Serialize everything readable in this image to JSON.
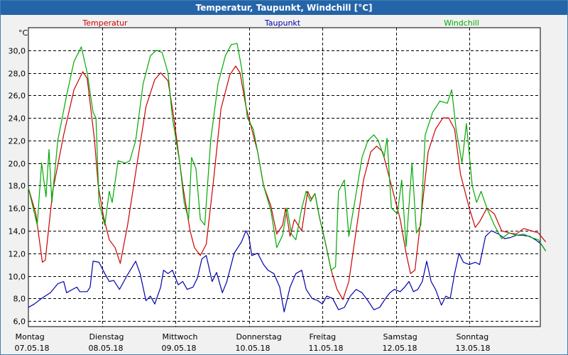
{
  "window": {
    "title": "Temperatur, Taupunkt, Windchill [°C]"
  },
  "chart_data": {
    "type": "line",
    "title": "Temperatur, Taupunkt, Windchill [°C]",
    "ylabel": "°C",
    "xlabel": "",
    "ylim": [
      5.5,
      32.0
    ],
    "xlim": [
      0,
      7.12
    ],
    "grid": true,
    "legend_position": "top",
    "y_ticks": [
      "6,0",
      "8,0",
      "10,0",
      "12,0",
      "14,0",
      "16,0",
      "18,0",
      "20,0",
      "22,0",
      "24,0",
      "26,0",
      "28,0",
      "30,0"
    ],
    "y_tick_values": [
      6,
      8,
      10,
      12,
      14,
      16,
      18,
      20,
      22,
      24,
      26,
      28,
      30
    ],
    "x_ticks": [
      {
        "day": "Montag",
        "date": "07.05.18",
        "x": 0
      },
      {
        "day": "Dienstag",
        "date": "08.05.18",
        "x": 1
      },
      {
        "day": "Mittwoch",
        "date": "09.05.18",
        "x": 2
      },
      {
        "day": "Donnerstag",
        "date": "10.05.18",
        "x": 3
      },
      {
        "day": "Freitag",
        "date": "11.05.18",
        "x": 4
      },
      {
        "day": "Samstag",
        "date": "12.05.18",
        "x": 5
      },
      {
        "day": "Sonntag",
        "date": "13.05.18",
        "x": 6
      }
    ],
    "series": [
      {
        "name": "Temperatur",
        "color": "#cc0000",
        "points": [
          [
            0.0,
            17.8
          ],
          [
            0.1,
            15.5
          ],
          [
            0.19,
            11.2
          ],
          [
            0.23,
            11.4
          ],
          [
            0.33,
            17.5
          ],
          [
            0.48,
            22.5
          ],
          [
            0.62,
            26.5
          ],
          [
            0.74,
            28.1
          ],
          [
            0.8,
            27.5
          ],
          [
            0.9,
            22.0
          ],
          [
            0.95,
            18.0
          ],
          [
            1.02,
            15.3
          ],
          [
            1.1,
            13.2
          ],
          [
            1.18,
            12.5
          ],
          [
            1.25,
            11.1
          ],
          [
            1.35,
            14.5
          ],
          [
            1.48,
            20.0
          ],
          [
            1.6,
            25.0
          ],
          [
            1.72,
            27.4
          ],
          [
            1.8,
            28.0
          ],
          [
            1.9,
            27.3
          ],
          [
            1.98,
            24.0
          ],
          [
            2.1,
            18.0
          ],
          [
            2.2,
            14.0
          ],
          [
            2.26,
            12.5
          ],
          [
            2.34,
            11.8
          ],
          [
            2.42,
            12.8
          ],
          [
            2.52,
            18.5
          ],
          [
            2.62,
            24.8
          ],
          [
            2.74,
            27.8
          ],
          [
            2.82,
            28.6
          ],
          [
            2.88,
            28.0
          ],
          [
            2.96,
            25.0
          ],
          [
            3.04,
            23.0
          ],
          [
            3.12,
            21.0
          ],
          [
            3.2,
            18.0
          ],
          [
            3.3,
            16.2
          ],
          [
            3.38,
            13.7
          ],
          [
            3.46,
            14.5
          ],
          [
            3.5,
            16.0
          ],
          [
            3.56,
            13.5
          ],
          [
            3.62,
            15.0
          ],
          [
            3.72,
            14.0
          ],
          [
            3.8,
            17.5
          ],
          [
            3.85,
            16.8
          ],
          [
            3.9,
            17.3
          ],
          [
            3.96,
            15.2
          ],
          [
            4.04,
            13.0
          ],
          [
            4.12,
            10.5
          ],
          [
            4.2,
            8.8
          ],
          [
            4.28,
            7.9
          ],
          [
            4.36,
            9.5
          ],
          [
            4.46,
            14.0
          ],
          [
            4.56,
            18.5
          ],
          [
            4.66,
            21.0
          ],
          [
            4.74,
            21.5
          ],
          [
            4.82,
            21.0
          ],
          [
            4.88,
            19.5
          ],
          [
            4.96,
            17.5
          ],
          [
            5.06,
            15.0
          ],
          [
            5.14,
            12.0
          ],
          [
            5.2,
            10.2
          ],
          [
            5.26,
            10.5
          ],
          [
            5.34,
            15.0
          ],
          [
            5.44,
            21.0
          ],
          [
            5.54,
            23.0
          ],
          [
            5.64,
            24.0
          ],
          [
            5.72,
            24.0
          ],
          [
            5.8,
            23.0
          ],
          [
            5.88,
            19.0
          ],
          [
            6.0,
            16.0
          ],
          [
            6.08,
            14.3
          ],
          [
            6.14,
            14.8
          ],
          [
            6.24,
            16.0
          ],
          [
            6.34,
            15.5
          ],
          [
            6.44,
            14.0
          ],
          [
            6.54,
            13.8
          ],
          [
            6.64,
            13.7
          ],
          [
            6.74,
            14.2
          ],
          [
            6.84,
            14.0
          ],
          [
            6.94,
            13.8
          ],
          [
            7.04,
            13.0
          ]
        ]
      },
      {
        "name": "Taupunkt",
        "color": "#0000aa",
        "points": [
          [
            0.0,
            7.2
          ],
          [
            0.08,
            7.5
          ],
          [
            0.18,
            8.0
          ],
          [
            0.3,
            8.5
          ],
          [
            0.4,
            9.3
          ],
          [
            0.48,
            9.5
          ],
          [
            0.52,
            8.5
          ],
          [
            0.6,
            8.8
          ],
          [
            0.66,
            9.0
          ],
          [
            0.7,
            8.6
          ],
          [
            0.8,
            8.6
          ],
          [
            0.84,
            9.0
          ],
          [
            0.88,
            11.3
          ],
          [
            0.96,
            11.2
          ],
          [
            1.04,
            10.2
          ],
          [
            1.1,
            9.5
          ],
          [
            1.16,
            9.6
          ],
          [
            1.24,
            8.8
          ],
          [
            1.34,
            10.0
          ],
          [
            1.46,
            11.3
          ],
          [
            1.52,
            10.2
          ],
          [
            1.6,
            7.8
          ],
          [
            1.66,
            8.2
          ],
          [
            1.72,
            7.5
          ],
          [
            1.8,
            9.0
          ],
          [
            1.84,
            10.5
          ],
          [
            1.9,
            10.2
          ],
          [
            1.96,
            10.5
          ],
          [
            2.04,
            9.2
          ],
          [
            2.1,
            9.5
          ],
          [
            2.16,
            8.8
          ],
          [
            2.24,
            9.0
          ],
          [
            2.3,
            9.8
          ],
          [
            2.36,
            11.5
          ],
          [
            2.42,
            11.8
          ],
          [
            2.5,
            9.5
          ],
          [
            2.56,
            10.3
          ],
          [
            2.64,
            8.5
          ],
          [
            2.7,
            9.5
          ],
          [
            2.8,
            12.0
          ],
          [
            2.9,
            13.0
          ],
          [
            2.96,
            14.0
          ],
          [
            3.0,
            13.5
          ],
          [
            3.04,
            11.8
          ],
          [
            3.12,
            12.0
          ],
          [
            3.2,
            11.0
          ],
          [
            3.26,
            10.5
          ],
          [
            3.34,
            10.2
          ],
          [
            3.42,
            9.0
          ],
          [
            3.48,
            6.8
          ],
          [
            3.56,
            9.0
          ],
          [
            3.64,
            10.2
          ],
          [
            3.72,
            10.5
          ],
          [
            3.78,
            8.8
          ],
          [
            3.86,
            8.0
          ],
          [
            3.94,
            7.8
          ],
          [
            4.0,
            7.5
          ],
          [
            4.06,
            8.2
          ],
          [
            4.14,
            8.0
          ],
          [
            4.22,
            7.0
          ],
          [
            4.3,
            7.2
          ],
          [
            4.38,
            8.2
          ],
          [
            4.46,
            8.8
          ],
          [
            4.54,
            8.5
          ],
          [
            4.62,
            7.8
          ],
          [
            4.7,
            7.0
          ],
          [
            4.78,
            7.2
          ],
          [
            4.86,
            8.0
          ],
          [
            4.92,
            8.5
          ],
          [
            4.98,
            8.8
          ],
          [
            5.06,
            8.6
          ],
          [
            5.12,
            9.0
          ],
          [
            5.18,
            9.5
          ],
          [
            5.24,
            8.6
          ],
          [
            5.3,
            8.8
          ],
          [
            5.36,
            9.5
          ],
          [
            5.42,
            11.3
          ],
          [
            5.48,
            9.5
          ],
          [
            5.54,
            8.8
          ],
          [
            5.62,
            7.4
          ],
          [
            5.68,
            8.2
          ],
          [
            5.74,
            8.0
          ],
          [
            5.8,
            10.2
          ],
          [
            5.86,
            12.0
          ],
          [
            5.92,
            11.2
          ],
          [
            6.0,
            11.0
          ],
          [
            6.08,
            11.2
          ],
          [
            6.14,
            11.0
          ],
          [
            6.22,
            13.5
          ],
          [
            6.3,
            14.0
          ],
          [
            6.4,
            13.7
          ],
          [
            6.48,
            13.3
          ],
          [
            6.56,
            13.4
          ],
          [
            6.64,
            13.6
          ],
          [
            6.72,
            13.6
          ],
          [
            6.82,
            13.5
          ],
          [
            6.9,
            13.2
          ],
          [
            6.98,
            12.8
          ],
          [
            7.04,
            12.2
          ]
        ]
      },
      {
        "name": "Windchill",
        "color": "#00aa00",
        "points": [
          [
            0.0,
            17.8
          ],
          [
            0.12,
            14.5
          ],
          [
            0.18,
            20.0
          ],
          [
            0.24,
            17.0
          ],
          [
            0.28,
            21.2
          ],
          [
            0.32,
            16.5
          ],
          [
            0.4,
            22.0
          ],
          [
            0.52,
            26.0
          ],
          [
            0.62,
            29.0
          ],
          [
            0.72,
            30.3
          ],
          [
            0.8,
            28.0
          ],
          [
            0.88,
            24.5
          ],
          [
            0.92,
            24.0
          ],
          [
            0.96,
            16.5
          ],
          [
            1.04,
            14.5
          ],
          [
            1.1,
            17.5
          ],
          [
            1.14,
            16.5
          ],
          [
            1.22,
            20.2
          ],
          [
            1.32,
            20.0
          ],
          [
            1.38,
            20.2
          ],
          [
            1.46,
            22.0
          ],
          [
            1.56,
            27.0
          ],
          [
            1.66,
            29.5
          ],
          [
            1.74,
            30.0
          ],
          [
            1.82,
            29.8
          ],
          [
            1.9,
            28.0
          ],
          [
            1.96,
            24.0
          ],
          [
            2.06,
            20.0
          ],
          [
            2.12,
            16.5
          ],
          [
            2.18,
            15.0
          ],
          [
            2.22,
            20.5
          ],
          [
            2.28,
            19.5
          ],
          [
            2.34,
            15.0
          ],
          [
            2.4,
            14.5
          ],
          [
            2.48,
            22.0
          ],
          [
            2.58,
            27.0
          ],
          [
            2.68,
            29.5
          ],
          [
            2.76,
            30.5
          ],
          [
            2.84,
            30.6
          ],
          [
            2.9,
            28.5
          ],
          [
            2.98,
            24.0
          ],
          [
            3.06,
            23.0
          ],
          [
            3.12,
            21.0
          ],
          [
            3.2,
            18.0
          ],
          [
            3.3,
            15.8
          ],
          [
            3.38,
            12.5
          ],
          [
            3.46,
            13.6
          ],
          [
            3.52,
            16.0
          ],
          [
            3.58,
            13.7
          ],
          [
            3.64,
            13.2
          ],
          [
            3.72,
            16.0
          ],
          [
            3.78,
            17.5
          ],
          [
            3.84,
            16.6
          ],
          [
            3.9,
            17.3
          ],
          [
            3.96,
            15.2
          ],
          [
            4.04,
            13.0
          ],
          [
            4.12,
            10.5
          ],
          [
            4.18,
            10.8
          ],
          [
            4.22,
            17.5
          ],
          [
            4.3,
            18.5
          ],
          [
            4.36,
            13.5
          ],
          [
            4.44,
            16.5
          ],
          [
            4.54,
            20.5
          ],
          [
            4.62,
            22.0
          ],
          [
            4.7,
            22.5
          ],
          [
            4.76,
            22.0
          ],
          [
            4.84,
            20.5
          ],
          [
            4.88,
            22.2
          ],
          [
            4.94,
            16.0
          ],
          [
            5.02,
            15.5
          ],
          [
            5.08,
            18.5
          ],
          [
            5.14,
            12.6
          ],
          [
            5.22,
            20.0
          ],
          [
            5.28,
            13.8
          ],
          [
            5.34,
            14.5
          ],
          [
            5.4,
            22.5
          ],
          [
            5.5,
            24.5
          ],
          [
            5.6,
            25.5
          ],
          [
            5.7,
            25.3
          ],
          [
            5.76,
            26.5
          ],
          [
            5.82,
            23.0
          ],
          [
            5.9,
            20.0
          ],
          [
            5.96,
            23.5
          ],
          [
            6.04,
            18.0
          ],
          [
            6.1,
            16.5
          ],
          [
            6.16,
            17.5
          ],
          [
            6.24,
            16.0
          ],
          [
            6.34,
            14.5
          ],
          [
            6.44,
            13.3
          ],
          [
            6.54,
            13.8
          ],
          [
            6.64,
            13.6
          ],
          [
            6.74,
            13.7
          ],
          [
            6.84,
            13.4
          ],
          [
            6.94,
            13.2
          ],
          [
            7.04,
            12.2
          ]
        ]
      }
    ]
  }
}
